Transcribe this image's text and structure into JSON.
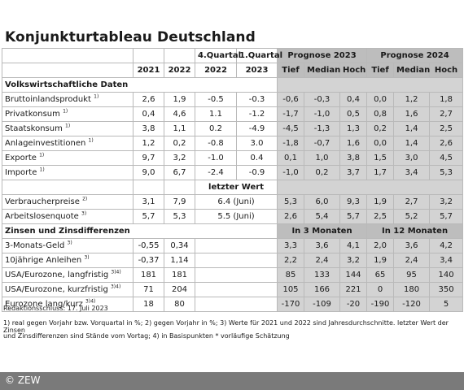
{
  "title": "Konjunkturtableau Deutschland",
  "header": {
    "quarter_labels": [
      "4.Quartal",
      "1.Quartal"
    ],
    "prognose_2023": "Prognose 2023",
    "prognose_2024": "Prognose 2024",
    "years": [
      "2021",
      "2022",
      "2022",
      "2023"
    ],
    "forecast_cols": [
      "Tief",
      "Median",
      "Hoch",
      "Tief",
      "Median",
      "Hoch"
    ]
  },
  "sections": {
    "volkswirtschaft": "Volkswirtschaftliche Daten",
    "zinsen": "Zinsen und Zinsdifferenzen",
    "letzter_wert": "letzter Wert",
    "in3": "In 3 Monaten",
    "in12": "In 12 Monaten"
  },
  "rows_a": [
    {
      "label": "Bruttoinlandsprodukt",
      "sup": "1)",
      "y2021": "2,6",
      "y2022": "1,9",
      "q4": "-0.5",
      "q1": "-0.3",
      "f": [
        "-0,6",
        "-0,3",
        "0,4",
        "0,0",
        "1,2",
        "1,8"
      ]
    },
    {
      "label": "Privatkonsum",
      "sup": "1)",
      "y2021": "0,4",
      "y2022": "4,6",
      "q4": "1.1",
      "q1": "-1.2",
      "f": [
        "-1,7",
        "-1,0",
        "0,5",
        "0,8",
        "1,6",
        "2,7"
      ]
    },
    {
      "label": "Staatskonsum",
      "sup": "1)",
      "y2021": "3,8",
      "y2022": "1,1",
      "q4": "0.2",
      "q1": "-4.9",
      "f": [
        "-4,5",
        "-1,3",
        "1,3",
        "0,2",
        "1,4",
        "2,5"
      ]
    },
    {
      "label": "Anlageinvestitionen",
      "sup": "1)",
      "y2021": "1,2",
      "y2022": "0,2",
      "q4": "-0.8",
      "q1": "3.0",
      "f": [
        "-1,8",
        "-0,7",
        "1,6",
        "0,0",
        "1,4",
        "2,6"
      ]
    },
    {
      "label": "Exporte",
      "sup": "1)",
      "y2021": "9,7",
      "y2022": "3,2",
      "q4": "-1.0",
      "q1": "0.4",
      "f": [
        "0,1",
        "1,0",
        "3,8",
        "1,5",
        "3,0",
        "4,5"
      ]
    },
    {
      "label": "Importe",
      "sup": "1)",
      "y2021": "9,0",
      "y2022": "6,7",
      "q4": "-2.4",
      "q1": "-0.9",
      "f": [
        "-1,0",
        "0,2",
        "3,7",
        "1,7",
        "3,4",
        "5,3"
      ]
    }
  ],
  "rows_b": [
    {
      "label": "Verbraucherpreise",
      "sup": "2)",
      "y2021": "3,1",
      "y2022": "7,9",
      "last": "6.4 (Juni)",
      "f": [
        "5,3",
        "6,0",
        "9,3",
        "1,9",
        "2,7",
        "3,2"
      ]
    },
    {
      "label": "Arbeitslosenquote",
      "sup": "3)",
      "y2021": "5,7",
      "y2022": "5,3",
      "last": "5.5 (Juni)",
      "f": [
        "2,6",
        "5,4",
        "5,7",
        "2,5",
        "5,2",
        "5,7"
      ]
    }
  ],
  "rows_c": [
    {
      "label": "3-Monats-Geld",
      "sup": "3)",
      "y2021": "-0,55",
      "y2022": "0,34",
      "f": [
        "3,3",
        "3,6",
        "4,1",
        "2,0",
        "3,6",
        "4,2"
      ]
    },
    {
      "label": "10jährige Anleihen",
      "sup": "3)",
      "y2021": "-0,37",
      "y2022": "1,14",
      "f": [
        "2,2",
        "2,4",
        "3,2",
        "1,9",
        "2,4",
        "3,4"
      ]
    },
    {
      "label": "USA/Eurozone, langfristig",
      "sup": "3)4)",
      "y2021": "181",
      "y2022": "181",
      "f": [
        "85",
        "133",
        "144",
        "65",
        "95",
        "140"
      ]
    },
    {
      "label": "USA/Eurozone, kurzfristig",
      "sup": "3)4)",
      "y2021": "71",
      "y2022": "204",
      "f": [
        "105",
        "166",
        "221",
        "0",
        "180",
        "350"
      ]
    },
    {
      "label": "Eurozone lang/kurz",
      "sup": "3)4)",
      "y2021": "18",
      "y2022": "80",
      "f": [
        "-170",
        "-109",
        "-20",
        "-190",
        "-120",
        "5"
      ]
    }
  ],
  "footnotes": {
    "redaktion": "Redaktionsschluss: 17. Juli 2023",
    "line1": "1) real gegen Vorjahr bzw. Vorquartal in %; 2) gegen Vorjahr in %; 3) Werte für 2021 und 2022 sind Jahresdurchschnitte. letzter Wert der Zinsen",
    "line2": "und Zinsdifferenzen sind Stände vom Vortag; 4) in Basispunkten * vorläufige Schätzung"
  },
  "credit": "© ZEW"
}
